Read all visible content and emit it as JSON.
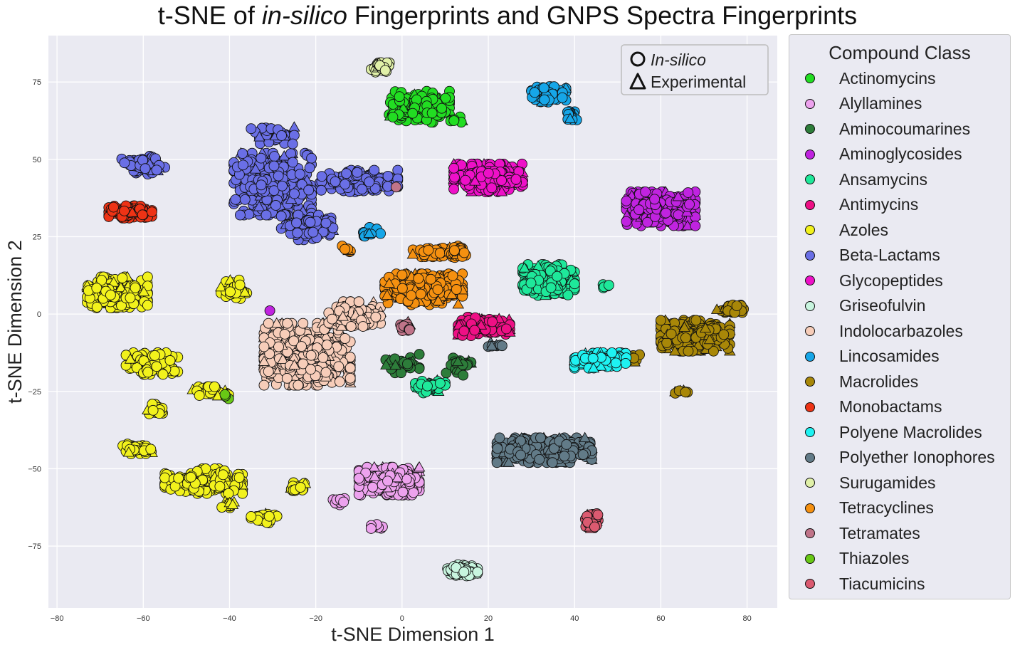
{
  "chart_data": {
    "type": "scatter",
    "title_parts": [
      "t-SNE of ",
      "in-silico",
      " Fingerprints and GNPS Spectra Fingerprints"
    ],
    "xlabel": "t-SNE Dimension 1",
    "ylabel": "t-SNE Dimension 2",
    "xlim": [
      -82,
      87
    ],
    "ylim": [
      -95,
      90
    ],
    "xticks": [
      -80,
      -60,
      -40,
      -20,
      0,
      20,
      40,
      60,
      80
    ],
    "yticks": [
      -75,
      -50,
      -25,
      0,
      25,
      50,
      75
    ],
    "grid": true,
    "marker_legend": {
      "placement": "top-right",
      "items": [
        {
          "label": "In-silico",
          "marker": "circle"
        },
        {
          "label": "Experimental",
          "marker": "triangle"
        }
      ]
    },
    "legend": {
      "title": "Compound Class",
      "placement": "outside-right"
    },
    "series": [
      {
        "name": "Actinomycins",
        "color": "#22dd22",
        "clusters": [
          [
            4,
            67,
            7,
            5,
            180
          ],
          [
            12,
            63,
            2,
            1,
            8
          ]
        ]
      },
      {
        "name": "Alyllamines",
        "color": "#eda2ee",
        "clusters": [
          [
            -3,
            -54,
            7,
            4.5,
            260
          ],
          [
            -14,
            -61,
            2,
            1.5,
            12
          ],
          [
            -6,
            -69,
            2,
            1,
            8
          ]
        ]
      },
      {
        "name": "Aminocoumarines",
        "color": "#2d7d3a",
        "clusters": [
          [
            0,
            -16,
            4,
            3,
            30
          ],
          [
            13,
            -17,
            3,
            3,
            30
          ]
        ]
      },
      {
        "name": "Aminoglycosides",
        "color": "#c023e0",
        "clusters": [
          [
            60,
            34,
            8,
            5.5,
            320
          ],
          [
            -31,
            1,
            0.5,
            0.5,
            1
          ]
        ]
      },
      {
        "name": "Ansamycins",
        "color": "#1ee89a",
        "clusters": [
          [
            34,
            11,
            6,
            5,
            210
          ],
          [
            6,
            -23,
            4,
            2.5,
            40
          ],
          [
            47,
            9,
            2,
            1,
            6
          ]
        ]
      },
      {
        "name": "Antimycins",
        "color": "#ee1085",
        "clusters": [
          [
            19,
            -4,
            6,
            3,
            140
          ]
        ]
      },
      {
        "name": "Azoles",
        "color": "#f2f21c",
        "clusters": [
          [
            -66,
            7,
            7,
            5,
            260
          ],
          [
            -58,
            -16,
            6,
            3.5,
            110
          ],
          [
            -39,
            8,
            3,
            3,
            40
          ],
          [
            -57,
            -31,
            2,
            2,
            24
          ],
          [
            -61,
            -44,
            4,
            2,
            50
          ],
          [
            -46,
            -54,
            9,
            4,
            200
          ],
          [
            -32,
            -66,
            3,
            1.5,
            30
          ],
          [
            -24,
            -56,
            2.5,
            1.5,
            22
          ],
          [
            -44,
            -25,
            5,
            2,
            26
          ],
          [
            -40,
            -62,
            2,
            1.5,
            12
          ]
        ]
      },
      {
        "name": "Beta-Lactams",
        "color": "#6a6fe6",
        "clusters": [
          [
            -30,
            42,
            9,
            10,
            340
          ],
          [
            -10,
            43,
            9,
            3.5,
            180
          ],
          [
            -22,
            28,
            6,
            4,
            110
          ],
          [
            -60,
            48,
            5,
            3,
            60
          ],
          [
            -30,
            58,
            5,
            3,
            40
          ]
        ]
      },
      {
        "name": "Glycopeptides",
        "color": "#ee10c8",
        "clusters": [
          [
            20,
            44,
            8,
            4.5,
            260
          ]
        ]
      },
      {
        "name": "Griseofulvin",
        "color": "#c8f5df",
        "clusters": [
          [
            14,
            -83,
            3.5,
            2,
            60
          ]
        ]
      },
      {
        "name": "Indolocarbazoles",
        "color": "#f7cdb9",
        "clusters": [
          [
            -22,
            -13,
            10,
            10,
            520
          ],
          [
            -11,
            0,
            6,
            4,
            100
          ]
        ]
      },
      {
        "name": "Lincosamides",
        "color": "#16a6e8",
        "clusters": [
          [
            34,
            71,
            4,
            2.5,
            80
          ],
          [
            39,
            64,
            1.5,
            2,
            20
          ],
          [
            -7,
            26,
            2,
            2,
            12
          ]
        ]
      },
      {
        "name": "Macrolides",
        "color": "#a88708",
        "clusters": [
          [
            68,
            -7,
            8,
            5,
            300
          ],
          [
            77,
            2,
            4,
            1.5,
            30
          ],
          [
            65,
            -25,
            2,
            0.6,
            8
          ],
          [
            54,
            -14,
            2,
            1.5,
            10
          ]
        ]
      },
      {
        "name": "Monobactams",
        "color": "#ee3315",
        "clusters": [
          [
            -63,
            33,
            5,
            2,
            150
          ]
        ]
      },
      {
        "name": "Polyene Macrolides",
        "color": "#1ef2f2",
        "clusters": [
          [
            46,
            -15,
            6,
            2.5,
            140
          ]
        ]
      },
      {
        "name": "Polyether Ionophores",
        "color": "#627b88",
        "clusters": [
          [
            33,
            -44,
            11,
            4,
            380
          ],
          [
            22,
            -10,
            2,
            1,
            8
          ]
        ]
      },
      {
        "name": "Surugamides",
        "color": "#e0f0a8",
        "clusters": [
          [
            -5,
            80,
            2.5,
            1.8,
            40
          ]
        ]
      },
      {
        "name": "Tetracyclines",
        "color": "#f59010",
        "clusters": [
          [
            5,
            8,
            9,
            5,
            300
          ],
          [
            7,
            20,
            5,
            1.5,
            40
          ],
          [
            13,
            20,
            2,
            2,
            30
          ],
          [
            -13,
            21,
            1.5,
            1,
            6
          ]
        ]
      },
      {
        "name": "Tetramates",
        "color": "#c07489",
        "clusters": [
          [
            1,
            -4,
            1.5,
            1.5,
            18
          ],
          [
            -1,
            41,
            0.5,
            0.5,
            1
          ]
        ]
      },
      {
        "name": "Thiazoles",
        "color": "#68c815",
        "clusters": [
          [
            -41,
            -27,
            1,
            1,
            4
          ]
        ]
      },
      {
        "name": "Tiacumicins",
        "color": "#db5a70",
        "clusters": [
          [
            44,
            -67,
            1.5,
            2.5,
            60
          ]
        ]
      }
    ]
  }
}
